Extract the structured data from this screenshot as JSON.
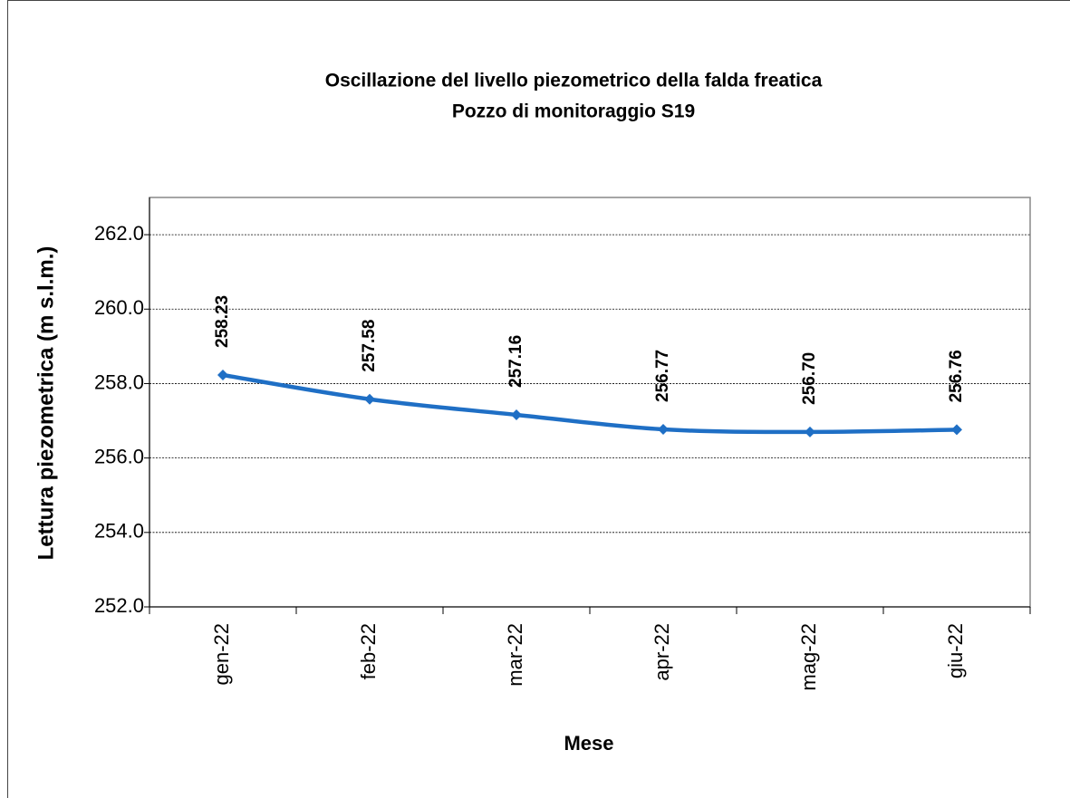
{
  "chart_data": {
    "type": "line",
    "title": "Oscillazione del livello piezometrico della falda freatica",
    "subtitle": "Pozzo di monitoraggio S19",
    "x_label": "Mese",
    "y_label": "Lettura piezometrica (m s.l.m.)",
    "categories": [
      "gen-22",
      "feb-22",
      "mar-22",
      "apr-22",
      "mag-22",
      "giu-22"
    ],
    "series": [
      {
        "name": "S19",
        "color": "#1f6fc5",
        "values": [
          258.23,
          257.58,
          257.16,
          256.77,
          256.7,
          256.76
        ],
        "value_labels": [
          "258.23",
          "257.58",
          "257.16",
          "256.77",
          "256.70",
          "256.76"
        ]
      }
    ],
    "ylim": [
      252,
      263
    ],
    "yticks": [
      {
        "value": 252,
        "label": "252.0"
      },
      {
        "value": 254,
        "label": "254.0"
      },
      {
        "value": 256,
        "label": "256.0"
      },
      {
        "value": 258,
        "label": "258.0"
      },
      {
        "value": 260,
        "label": "260.0"
      },
      {
        "value": 262,
        "label": "262.0"
      }
    ],
    "grid": true
  }
}
